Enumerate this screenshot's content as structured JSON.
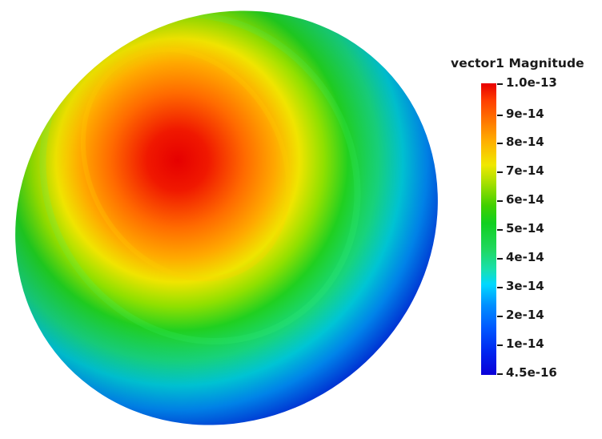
{
  "legend": {
    "title": "vector1 Magnitude",
    "labels": [
      "1.0e-13",
      "9e-14",
      "8e-14",
      "7e-14",
      "6e-14",
      "5e-14",
      "4e-14",
      "3e-14",
      "2e-14",
      "1e-14",
      "4.5e-16"
    ]
  },
  "colors": {
    "max": "#e60000",
    "high": "#ff8c00",
    "mid_high": "#f0e800",
    "mid": "#10d020",
    "mid_low": "#00d8ff",
    "low": "#0050f0",
    "min": "#0a00d0"
  }
}
